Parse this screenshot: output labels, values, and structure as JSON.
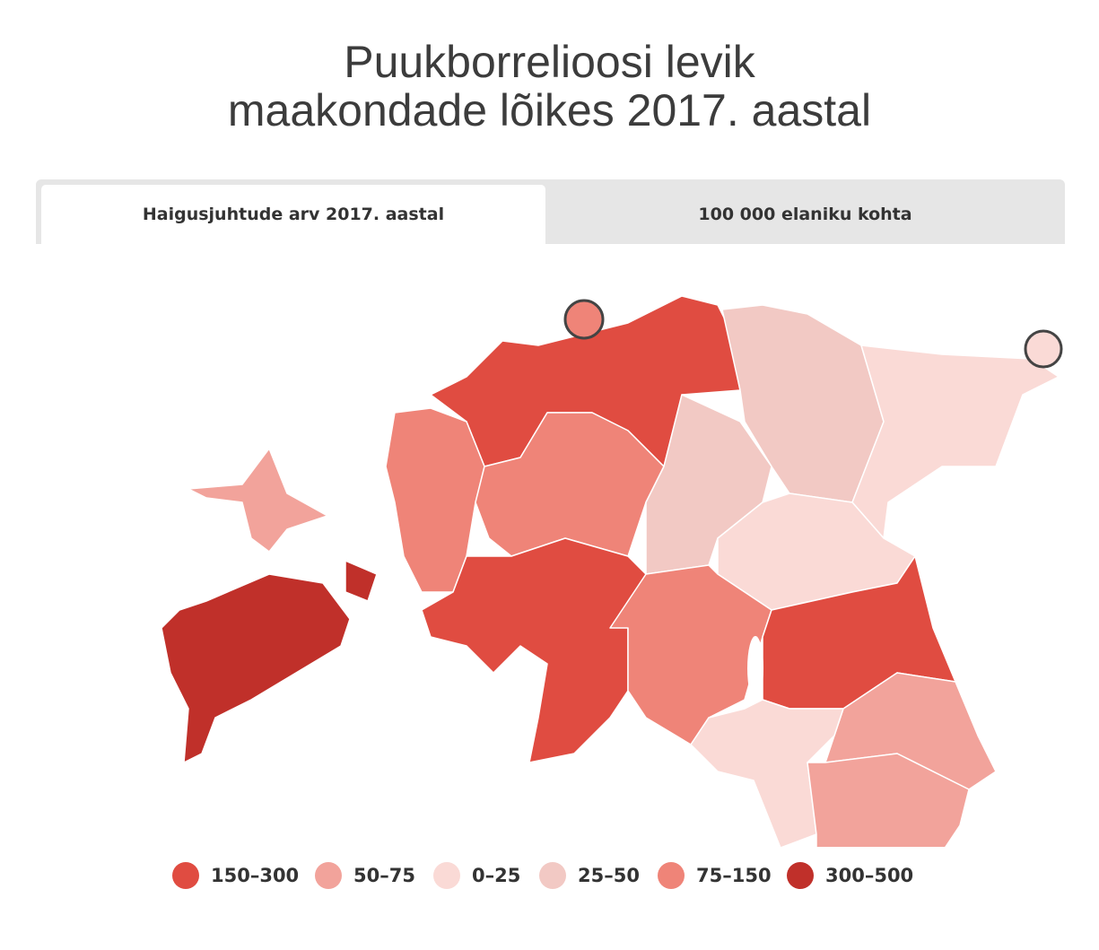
{
  "header": {
    "title_lines": [
      "Puukborrelioosi levik",
      "maakondade lõikes 2017. aastal"
    ]
  },
  "tabs": [
    {
      "label": "Haigusjuhtude arv 2017. aastal",
      "active": true
    },
    {
      "label": "100 000 elaniku kohta",
      "active": false
    }
  ],
  "legend": [
    {
      "label": "150–300",
      "color": "#e04c41"
    },
    {
      "label": "50–75",
      "color": "#f2a39b"
    },
    {
      "label": "0–25",
      "color": "#fadad6"
    },
    {
      "label": "25–50",
      "color": "#f2c9c4"
    },
    {
      "label": "75–150",
      "color": "#ef8478"
    },
    {
      "label": "300–500",
      "color": "#c0302a"
    }
  ]
}
